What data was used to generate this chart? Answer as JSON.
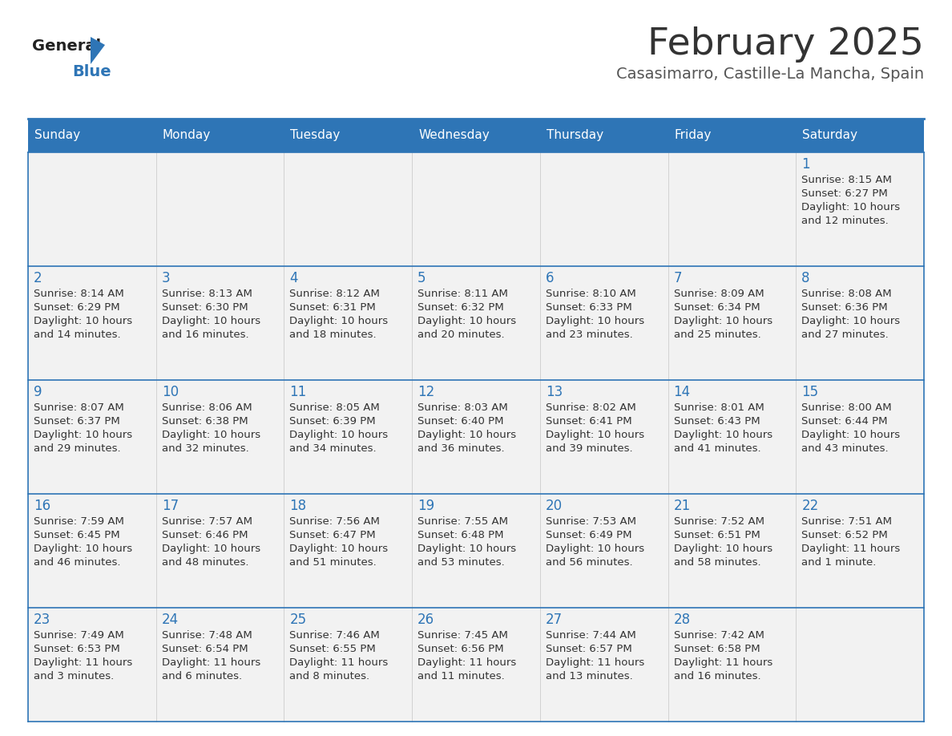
{
  "title": "February 2025",
  "subtitle": "Casasimarro, Castille-La Mancha, Spain",
  "days_of_week": [
    "Sunday",
    "Monday",
    "Tuesday",
    "Wednesday",
    "Thursday",
    "Friday",
    "Saturday"
  ],
  "header_bg": "#2E75B6",
  "header_text": "#FFFFFF",
  "cell_bg": "#F2F2F2",
  "border_color": "#2E75B6",
  "separator_color": "#AAAAAA",
  "title_color": "#333333",
  "subtitle_color": "#555555",
  "day_number_color": "#2E75B6",
  "info_color": "#333333",
  "logo_general_color": "#222222",
  "logo_blue_color": "#2E75B6",
  "calendar_data": [
    {
      "day": 1,
      "col": 6,
      "row": 0,
      "sunrise": "8:15 AM",
      "sunset": "6:27 PM",
      "daylight_l1": "Daylight: 10 hours",
      "daylight_l2": "and 12 minutes."
    },
    {
      "day": 2,
      "col": 0,
      "row": 1,
      "sunrise": "8:14 AM",
      "sunset": "6:29 PM",
      "daylight_l1": "Daylight: 10 hours",
      "daylight_l2": "and 14 minutes."
    },
    {
      "day": 3,
      "col": 1,
      "row": 1,
      "sunrise": "8:13 AM",
      "sunset": "6:30 PM",
      "daylight_l1": "Daylight: 10 hours",
      "daylight_l2": "and 16 minutes."
    },
    {
      "day": 4,
      "col": 2,
      "row": 1,
      "sunrise": "8:12 AM",
      "sunset": "6:31 PM",
      "daylight_l1": "Daylight: 10 hours",
      "daylight_l2": "and 18 minutes."
    },
    {
      "day": 5,
      "col": 3,
      "row": 1,
      "sunrise": "8:11 AM",
      "sunset": "6:32 PM",
      "daylight_l1": "Daylight: 10 hours",
      "daylight_l2": "and 20 minutes."
    },
    {
      "day": 6,
      "col": 4,
      "row": 1,
      "sunrise": "8:10 AM",
      "sunset": "6:33 PM",
      "daylight_l1": "Daylight: 10 hours",
      "daylight_l2": "and 23 minutes."
    },
    {
      "day": 7,
      "col": 5,
      "row": 1,
      "sunrise": "8:09 AM",
      "sunset": "6:34 PM",
      "daylight_l1": "Daylight: 10 hours",
      "daylight_l2": "and 25 minutes."
    },
    {
      "day": 8,
      "col": 6,
      "row": 1,
      "sunrise": "8:08 AM",
      "sunset": "6:36 PM",
      "daylight_l1": "Daylight: 10 hours",
      "daylight_l2": "and 27 minutes."
    },
    {
      "day": 9,
      "col": 0,
      "row": 2,
      "sunrise": "8:07 AM",
      "sunset": "6:37 PM",
      "daylight_l1": "Daylight: 10 hours",
      "daylight_l2": "and 29 minutes."
    },
    {
      "day": 10,
      "col": 1,
      "row": 2,
      "sunrise": "8:06 AM",
      "sunset": "6:38 PM",
      "daylight_l1": "Daylight: 10 hours",
      "daylight_l2": "and 32 minutes."
    },
    {
      "day": 11,
      "col": 2,
      "row": 2,
      "sunrise": "8:05 AM",
      "sunset": "6:39 PM",
      "daylight_l1": "Daylight: 10 hours",
      "daylight_l2": "and 34 minutes."
    },
    {
      "day": 12,
      "col": 3,
      "row": 2,
      "sunrise": "8:03 AM",
      "sunset": "6:40 PM",
      "daylight_l1": "Daylight: 10 hours",
      "daylight_l2": "and 36 minutes."
    },
    {
      "day": 13,
      "col": 4,
      "row": 2,
      "sunrise": "8:02 AM",
      "sunset": "6:41 PM",
      "daylight_l1": "Daylight: 10 hours",
      "daylight_l2": "and 39 minutes."
    },
    {
      "day": 14,
      "col": 5,
      "row": 2,
      "sunrise": "8:01 AM",
      "sunset": "6:43 PM",
      "daylight_l1": "Daylight: 10 hours",
      "daylight_l2": "and 41 minutes."
    },
    {
      "day": 15,
      "col": 6,
      "row": 2,
      "sunrise": "8:00 AM",
      "sunset": "6:44 PM",
      "daylight_l1": "Daylight: 10 hours",
      "daylight_l2": "and 43 minutes."
    },
    {
      "day": 16,
      "col": 0,
      "row": 3,
      "sunrise": "7:59 AM",
      "sunset": "6:45 PM",
      "daylight_l1": "Daylight: 10 hours",
      "daylight_l2": "and 46 minutes."
    },
    {
      "day": 17,
      "col": 1,
      "row": 3,
      "sunrise": "7:57 AM",
      "sunset": "6:46 PM",
      "daylight_l1": "Daylight: 10 hours",
      "daylight_l2": "and 48 minutes."
    },
    {
      "day": 18,
      "col": 2,
      "row": 3,
      "sunrise": "7:56 AM",
      "sunset": "6:47 PM",
      "daylight_l1": "Daylight: 10 hours",
      "daylight_l2": "and 51 minutes."
    },
    {
      "day": 19,
      "col": 3,
      "row": 3,
      "sunrise": "7:55 AM",
      "sunset": "6:48 PM",
      "daylight_l1": "Daylight: 10 hours",
      "daylight_l2": "and 53 minutes."
    },
    {
      "day": 20,
      "col": 4,
      "row": 3,
      "sunrise": "7:53 AM",
      "sunset": "6:49 PM",
      "daylight_l1": "Daylight: 10 hours",
      "daylight_l2": "and 56 minutes."
    },
    {
      "day": 21,
      "col": 5,
      "row": 3,
      "sunrise": "7:52 AM",
      "sunset": "6:51 PM",
      "daylight_l1": "Daylight: 10 hours",
      "daylight_l2": "and 58 minutes."
    },
    {
      "day": 22,
      "col": 6,
      "row": 3,
      "sunrise": "7:51 AM",
      "sunset": "6:52 PM",
      "daylight_l1": "Daylight: 11 hours",
      "daylight_l2": "and 1 minute."
    },
    {
      "day": 23,
      "col": 0,
      "row": 4,
      "sunrise": "7:49 AM",
      "sunset": "6:53 PM",
      "daylight_l1": "Daylight: 11 hours",
      "daylight_l2": "and 3 minutes."
    },
    {
      "day": 24,
      "col": 1,
      "row": 4,
      "sunrise": "7:48 AM",
      "sunset": "6:54 PM",
      "daylight_l1": "Daylight: 11 hours",
      "daylight_l2": "and 6 minutes."
    },
    {
      "day": 25,
      "col": 2,
      "row": 4,
      "sunrise": "7:46 AM",
      "sunset": "6:55 PM",
      "daylight_l1": "Daylight: 11 hours",
      "daylight_l2": "and 8 minutes."
    },
    {
      "day": 26,
      "col": 3,
      "row": 4,
      "sunrise": "7:45 AM",
      "sunset": "6:56 PM",
      "daylight_l1": "Daylight: 11 hours",
      "daylight_l2": "and 11 minutes."
    },
    {
      "day": 27,
      "col": 4,
      "row": 4,
      "sunrise": "7:44 AM",
      "sunset": "6:57 PM",
      "daylight_l1": "Daylight: 11 hours",
      "daylight_l2": "and 13 minutes."
    },
    {
      "day": 28,
      "col": 5,
      "row": 4,
      "sunrise": "7:42 AM",
      "sunset": "6:58 PM",
      "daylight_l1": "Daylight: 11 hours",
      "daylight_l2": "and 16 minutes."
    }
  ]
}
